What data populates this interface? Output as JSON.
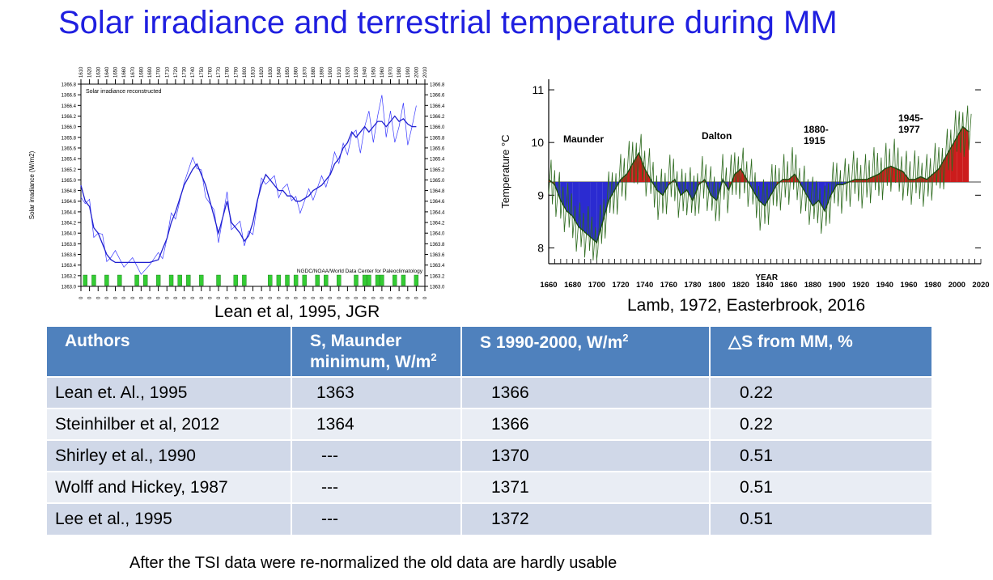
{
  "title": "Solar irradiance and terrestrial temperature during MM",
  "chart_data": [
    {
      "type": "line",
      "title": "Solar irradiance reconstructed",
      "credit": "NGDC/NOAA/World Data Center for Paleoclimatology",
      "ylabel": "Solar irradiance (W/m2)",
      "xlim": [
        1610,
        2010
      ],
      "ylim": [
        1363.0,
        1366.8
      ],
      "xticks": [
        "1610",
        "1620",
        "1630",
        "1640",
        "1650",
        "1660",
        "1670",
        "1680",
        "1690",
        "1700",
        "1710",
        "1720",
        "1730",
        "1740",
        "1750",
        "1760",
        "1770",
        "1780",
        "1790",
        "1800",
        "1810",
        "1820",
        "1830",
        "1840",
        "1850",
        "1860",
        "1870",
        "1880",
        "1890",
        "1900",
        "1910",
        "1920",
        "1930",
        "1940",
        "1950",
        "1960",
        "1970",
        "1980",
        "1990",
        "2000",
        "2010"
      ],
      "yticks": [
        "1363.0",
        "1363.2",
        "1363.4",
        "1363.6",
        "1363.8",
        "1364.0",
        "1364.2",
        "1364.4",
        "1364.6",
        "1364.8",
        "1365.0",
        "1365.2",
        "1365.4",
        "1365.6",
        "1365.8",
        "1366.0",
        "1366.2",
        "1366.4",
        "1366.6",
        "1366.8"
      ],
      "x": [
        1610,
        1615,
        1620,
        1625,
        1630,
        1635,
        1640,
        1645,
        1650,
        1660,
        1670,
        1680,
        1690,
        1700,
        1705,
        1710,
        1715,
        1720,
        1730,
        1740,
        1745,
        1750,
        1755,
        1760,
        1765,
        1770,
        1775,
        1780,
        1785,
        1790,
        1795,
        1800,
        1805,
        1810,
        1815,
        1820,
        1825,
        1830,
        1835,
        1840,
        1845,
        1850,
        1855,
        1860,
        1865,
        1870,
        1875,
        1880,
        1885,
        1890,
        1895,
        1900,
        1905,
        1910,
        1915,
        1920,
        1925,
        1930,
        1935,
        1940,
        1945,
        1950,
        1955,
        1960,
        1965,
        1970,
        1975,
        1980,
        1985,
        1990,
        1995,
        2000
      ],
      "values": [
        1364.9,
        1364.6,
        1364.5,
        1364.1,
        1364.0,
        1363.8,
        1363.6,
        1363.5,
        1363.45,
        1363.45,
        1363.45,
        1363.45,
        1363.45,
        1363.5,
        1363.7,
        1363.9,
        1364.2,
        1364.4,
        1364.9,
        1365.2,
        1365.3,
        1365.1,
        1364.9,
        1364.6,
        1364.3,
        1364.0,
        1364.3,
        1364.6,
        1364.2,
        1364.1,
        1364.0,
        1363.85,
        1363.95,
        1364.2,
        1364.6,
        1364.9,
        1365.1,
        1365.0,
        1364.9,
        1364.8,
        1364.8,
        1364.7,
        1364.7,
        1364.6,
        1364.6,
        1364.65,
        1364.7,
        1364.8,
        1364.85,
        1364.9,
        1365.0,
        1365.1,
        1365.3,
        1365.4,
        1365.6,
        1365.7,
        1365.9,
        1365.8,
        1365.9,
        1366.0,
        1365.9,
        1366.0,
        1366.1,
        1366.1,
        1366.0,
        1366.1,
        1366.2,
        1366.1,
        1366.15,
        1366.05,
        1366.0,
        1366.0
      ],
      "caption": "Lean et al, 1995, JGR"
    },
    {
      "type": "area",
      "ylabel": "Temperature °C",
      "xlabel": "YEAR",
      "xlim": [
        1660,
        2020
      ],
      "ylim": [
        7.7,
        11.2
      ],
      "baseline": 9.25,
      "xticks": [
        "1660",
        "1680",
        "1700",
        "1720",
        "1740",
        "1760",
        "1780",
        "1800",
        "1820",
        "1840",
        "1860",
        "1880",
        "1900",
        "1920",
        "1940",
        "1960",
        "1980",
        "2000",
        "2020"
      ],
      "yticks": [
        "8",
        "9",
        "10",
        "11"
      ],
      "annotations": [
        "Maunder",
        "Dalton",
        "1880-\n1915",
        "1945-\n1977"
      ],
      "x": [
        1660,
        1665,
        1670,
        1675,
        1680,
        1685,
        1690,
        1695,
        1700,
        1705,
        1710,
        1715,
        1720,
        1725,
        1730,
        1735,
        1740,
        1745,
        1750,
        1755,
        1760,
        1765,
        1770,
        1775,
        1780,
        1785,
        1790,
        1795,
        1800,
        1805,
        1810,
        1815,
        1820,
        1825,
        1830,
        1835,
        1840,
        1845,
        1850,
        1855,
        1860,
        1865,
        1870,
        1875,
        1880,
        1885,
        1890,
        1895,
        1900,
        1905,
        1910,
        1915,
        1920,
        1925,
        1930,
        1935,
        1940,
        1945,
        1950,
        1955,
        1960,
        1965,
        1970,
        1975,
        1980,
        1985,
        1990,
        1995,
        2000,
        2005,
        2010
      ],
      "values": [
        9.3,
        9.2,
        8.9,
        8.7,
        8.6,
        8.4,
        8.3,
        8.2,
        8.1,
        8.5,
        8.9,
        9.1,
        9.3,
        9.4,
        9.6,
        9.8,
        9.5,
        9.3,
        9.1,
        9.0,
        9.2,
        9.3,
        9.0,
        9.1,
        8.9,
        9.2,
        9.3,
        9.0,
        8.9,
        9.3,
        9.1,
        9.4,
        9.5,
        9.3,
        9.1,
        8.9,
        8.8,
        9.0,
        9.2,
        9.3,
        9.3,
        9.4,
        9.2,
        9.0,
        8.8,
        8.9,
        8.7,
        9.0,
        9.2,
        9.2,
        9.25,
        9.3,
        9.3,
        9.3,
        9.35,
        9.4,
        9.5,
        9.55,
        9.5,
        9.45,
        9.3,
        9.3,
        9.35,
        9.3,
        9.4,
        9.5,
        9.7,
        9.9,
        10.1,
        10.3,
        10.2
      ],
      "caption": "Lamb, 1972, Easterbrook, 2016"
    }
  ],
  "table": {
    "headers": [
      "Authors",
      "S,  Maunder minimum, W/m",
      "S 1990-2000, W/m",
      "△S  from MM, %"
    ],
    "header_sup": "2",
    "rows": [
      [
        "Lean et. Al., 1995",
        "1363",
        "1366",
        "0.22"
      ],
      [
        "Steinhilber et al, 2012",
        "1364",
        "1366",
        "0.22"
      ],
      [
        "Shirley et al., 1990",
        "---",
        "1370",
        "0.51"
      ],
      [
        "Wolff and Hickey, 1987",
        "---",
        "1371",
        "0.51"
      ],
      [
        "Lee et al., 1995",
        "---",
        "1372",
        "0.51"
      ]
    ]
  },
  "footnote": "After the  TSI data were re-normalized the old data are hardly usable",
  "colors": {
    "title": "#1f1fe0",
    "header": "#4f81bd",
    "line": "#1f1fcf",
    "warm": "#cc1c1c",
    "cold": "#2b2bd1",
    "trace": "#2e6b1f"
  }
}
